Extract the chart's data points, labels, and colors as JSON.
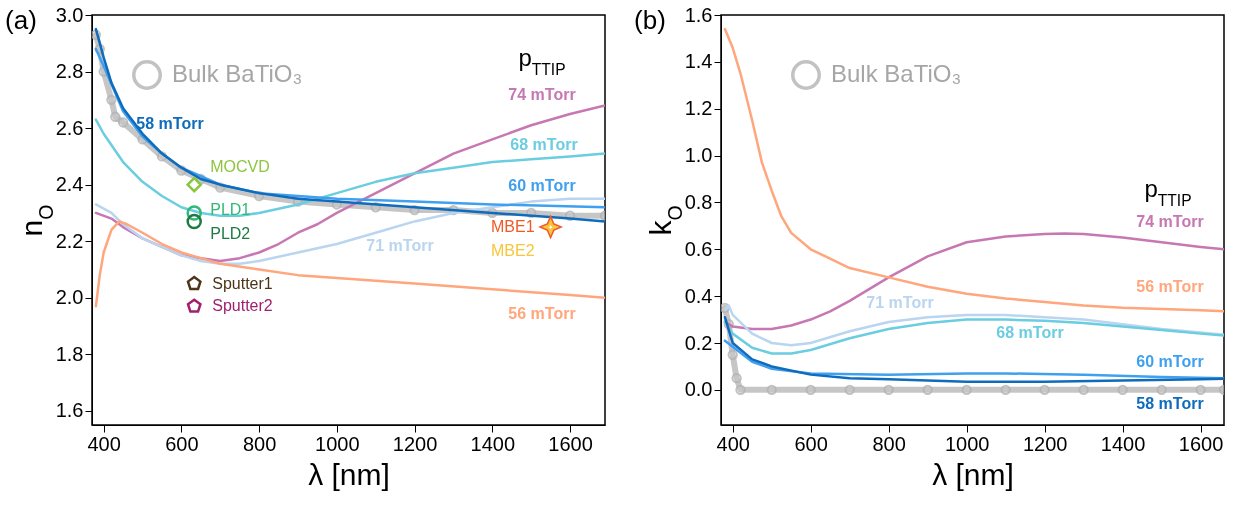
{
  "chart_data": [
    {
      "type": "line",
      "title": "(a)",
      "xlabel": "λ [nm]",
      "ylabel": "n$_{O}$",
      "legend_title": "p$_{TTIP}$",
      "legend": "top left",
      "xlim": [
        370,
        1690
      ],
      "xticks": [
        400,
        600,
        800,
        1000,
        1200,
        1400,
        1600
      ],
      "ylim": [
        1.55,
        3.0
      ],
      "yticks": [
        1.6,
        1.8,
        {
          "value": 2,
          "label": "2.0"
        },
        2.2,
        2.4,
        2.6,
        2.8,
        {
          "value": 3,
          "label": "3.0"
        }
      ],
      "series": [
        {
          "name": "Bulk BaTiO₃",
          "color": "#b3b3b3",
          "marker": "circle",
          "x": [
            380,
            390,
            400,
            420,
            430,
            450,
            500,
            550,
            600,
            650,
            700,
            800,
            900,
            1000,
            1100,
            1200,
            1300,
            1400,
            1500,
            1600,
            1690
          ],
          "values": [
            2.93,
            2.88,
            2.8,
            2.7,
            2.64,
            2.62,
            2.56,
            2.5,
            2.45,
            2.42,
            2.39,
            2.36,
            2.34,
            2.33,
            2.32,
            2.31,
            2.31,
            2.3,
            2.3,
            2.29,
            2.29
          ]
        },
        {
          "name": "74 mTorr",
          "color": "#c777b2",
          "x": [
            380,
            420,
            450,
            500,
            550,
            600,
            650,
            700,
            750,
            800,
            850,
            900,
            950,
            1000,
            1100,
            1200,
            1300,
            1400,
            1500,
            1600,
            1690
          ],
          "values": [
            2.3,
            2.28,
            2.25,
            2.21,
            2.18,
            2.15,
            2.14,
            2.13,
            2.14,
            2.16,
            2.19,
            2.23,
            2.26,
            2.3,
            2.37,
            2.44,
            2.51,
            2.56,
            2.61,
            2.65,
            2.68
          ]
        },
        {
          "name": "68 mTorr",
          "color": "#6bcde0",
          "x": [
            380,
            400,
            450,
            500,
            550,
            600,
            650,
            700,
            750,
            800,
            900,
            1000,
            1100,
            1200,
            1300,
            1400,
            1500,
            1600,
            1690
          ],
          "values": [
            2.63,
            2.58,
            2.48,
            2.41,
            2.36,
            2.32,
            2.3,
            2.29,
            2.29,
            2.3,
            2.33,
            2.37,
            2.41,
            2.44,
            2.46,
            2.48,
            2.49,
            2.5,
            2.51
          ]
        },
        {
          "name": "71 mTorr",
          "color": "#b9d5ef",
          "x": [
            380,
            420,
            450,
            500,
            550,
            600,
            650,
            700,
            750,
            800,
            900,
            1000,
            1100,
            1200,
            1300,
            1400,
            1500,
            1600,
            1690
          ],
          "values": [
            2.33,
            2.3,
            2.26,
            2.21,
            2.18,
            2.15,
            2.13,
            2.12,
            2.12,
            2.13,
            2.16,
            2.19,
            2.23,
            2.27,
            2.3,
            2.32,
            2.34,
            2.35,
            2.35
          ]
        },
        {
          "name": "56 mTorr",
          "color": "#ffa67c",
          "x": [
            380,
            390,
            400,
            420,
            440,
            460,
            500,
            550,
            600,
            650,
            700,
            800,
            900,
            1000,
            1200,
            1400,
            1600,
            1690
          ],
          "values": [
            1.97,
            2.08,
            2.16,
            2.24,
            2.27,
            2.26,
            2.23,
            2.19,
            2.16,
            2.14,
            2.12,
            2.1,
            2.08,
            2.07,
            2.05,
            2.03,
            2.01,
            2.0
          ]
        },
        {
          "name": "60 mTorr",
          "color": "#3fa0ef",
          "x": [
            380,
            400,
            450,
            500,
            550,
            600,
            700,
            800,
            1000,
            1200,
            1400,
            1690
          ],
          "values": [
            2.88,
            2.82,
            2.66,
            2.57,
            2.51,
            2.46,
            2.4,
            2.37,
            2.35,
            2.34,
            2.33,
            2.32
          ]
        },
        {
          "name": "58 mTorr",
          "color": "#0f6cbd",
          "x": [
            380,
            400,
            420,
            450,
            500,
            550,
            600,
            650,
            700,
            800,
            900,
            1000,
            1200,
            1400,
            1600,
            1690
          ],
          "values": [
            2.95,
            2.85,
            2.76,
            2.67,
            2.58,
            2.51,
            2.46,
            2.42,
            2.4,
            2.37,
            2.35,
            2.34,
            2.32,
            2.3,
            2.28,
            2.27
          ]
        },
        {
          "type": "scatter",
          "name": "MOCVD",
          "color": "#8cc63f",
          "marker": "diamond",
          "x": [
            633
          ],
          "values": [
            2.4
          ]
        },
        {
          "type": "scatter",
          "name": "PLD1",
          "color": "#33b877",
          "marker": "circle",
          "x": [
            633
          ],
          "values": [
            2.3
          ]
        },
        {
          "type": "scatter",
          "name": "PLD2",
          "color": "#1e7b45",
          "marker": "circle",
          "x": [
            633
          ],
          "values": [
            2.27
          ]
        },
        {
          "type": "scatter",
          "name": "MBE1",
          "color": "#f05a28",
          "marker": "star",
          "x": [
            1550
          ],
          "values": [
            2.25
          ]
        },
        {
          "type": "scatter",
          "name": "MBE2",
          "color": "#f7c63c",
          "marker": "star",
          "x": [
            1550
          ],
          "values": [
            2.25
          ]
        },
        {
          "type": "scatter",
          "name": "Sputter1",
          "color": "#4e3418",
          "x": [
            633
          ],
          "values": [
            2.05
          ]
        },
        {
          "type": "scatter",
          "name": "Sputter2",
          "color": "#a0206e",
          "x": [
            633
          ],
          "values": [
            1.97
          ]
        }
      ]
    },
    {
      "type": "line",
      "title": "(b)",
      "xlabel": "λ [nm]",
      "ylabel": "k$_{O}$",
      "legend_title": "p$_{TTIP}$",
      "legend": "top left",
      "xlim": [
        370,
        1660
      ],
      "xticks": [
        400,
        600,
        800,
        1000,
        1200,
        1400,
        1600
      ],
      "ylim": [
        -0.15,
        1.6
      ],
      "yticks": [
        {
          "value": 0,
          "label": "0.0"
        },
        0.2,
        0.4,
        0.6,
        0.8,
        {
          "value": 1,
          "label": "1.0"
        },
        1.2,
        1.4,
        1.6
      ],
      "series": [
        {
          "name": "Bulk BaTiO₃",
          "color": "#b3b3b3",
          "marker": "circle",
          "x": [
            380,
            390,
            400,
            410,
            420,
            500,
            600,
            700,
            800,
            900,
            1000,
            1100,
            1200,
            1300,
            1400,
            1500,
            1600,
            1660
          ],
          "values": [
            0.35,
            0.28,
            0.15,
            0.05,
            0,
            0,
            0,
            0,
            0,
            0,
            0,
            0,
            0,
            0,
            0,
            0,
            0,
            0
          ]
        },
        {
          "name": "74 mTorr",
          "color": "#c777b2",
          "x": [
            380,
            400,
            450,
            500,
            550,
            600,
            650,
            700,
            750,
            800,
            900,
            1000,
            1100,
            1200,
            1250,
            1300,
            1400,
            1500,
            1600,
            1660
          ],
          "values": [
            0.29,
            0.27,
            0.26,
            0.26,
            0.275,
            0.3,
            0.335,
            0.38,
            0.43,
            0.48,
            0.57,
            0.63,
            0.655,
            0.665,
            0.667,
            0.665,
            0.65,
            0.63,
            0.61,
            0.6
          ]
        },
        {
          "name": "56 mTorr",
          "color": "#ffa67c",
          "x": [
            380,
            400,
            420,
            450,
            475,
            500,
            525,
            550,
            600,
            700,
            800,
            900,
            1000,
            1100,
            1200,
            1300,
            1400,
            1500,
            1600,
            1660
          ],
          "values": [
            1.54,
            1.46,
            1.35,
            1.15,
            0.97,
            0.85,
            0.74,
            0.67,
            0.6,
            0.52,
            0.48,
            0.44,
            0.41,
            0.39,
            0.375,
            0.36,
            0.35,
            0.345,
            0.34,
            0.335
          ]
        },
        {
          "name": "71 mTorr",
          "color": "#b9d5ef",
          "x": [
            380,
            390,
            400,
            450,
            500,
            550,
            600,
            700,
            800,
            900,
            1000,
            1100,
            1200,
            1300,
            1400,
            1500,
            1600,
            1660
          ],
          "values": [
            0.34,
            0.36,
            0.32,
            0.24,
            0.2,
            0.19,
            0.2,
            0.25,
            0.29,
            0.31,
            0.32,
            0.32,
            0.31,
            0.3,
            0.28,
            0.26,
            0.245,
            0.235
          ]
        },
        {
          "name": "68 mTorr",
          "color": "#6bcde0",
          "x": [
            380,
            400,
            450,
            500,
            550,
            600,
            700,
            800,
            900,
            1000,
            1100,
            1200,
            1300,
            1400,
            1500,
            1600,
            1660
          ],
          "values": [
            0.29,
            0.24,
            0.18,
            0.155,
            0.155,
            0.17,
            0.22,
            0.26,
            0.285,
            0.3,
            0.3,
            0.295,
            0.285,
            0.27,
            0.255,
            0.24,
            0.232
          ]
        },
        {
          "name": "60 mTorr",
          "color": "#3fa0ef",
          "x": [
            380,
            450,
            500,
            600,
            800,
            1000,
            1100,
            1300,
            1500,
            1660
          ],
          "values": [
            0.21,
            0.12,
            0.09,
            0.07,
            0.065,
            0.07,
            0.07,
            0.065,
            0.055,
            0.05
          ]
        },
        {
          "name": "58 mTorr",
          "color": "#0f6cbd",
          "x": [
            380,
            400,
            450,
            500,
            600,
            700,
            800,
            1000,
            1200,
            1400,
            1600,
            1660
          ],
          "values": [
            0.31,
            0.2,
            0.13,
            0.1,
            0.065,
            0.05,
            0.045,
            0.035,
            0.035,
            0.04,
            0.045,
            0.047
          ]
        }
      ]
    }
  ]
}
